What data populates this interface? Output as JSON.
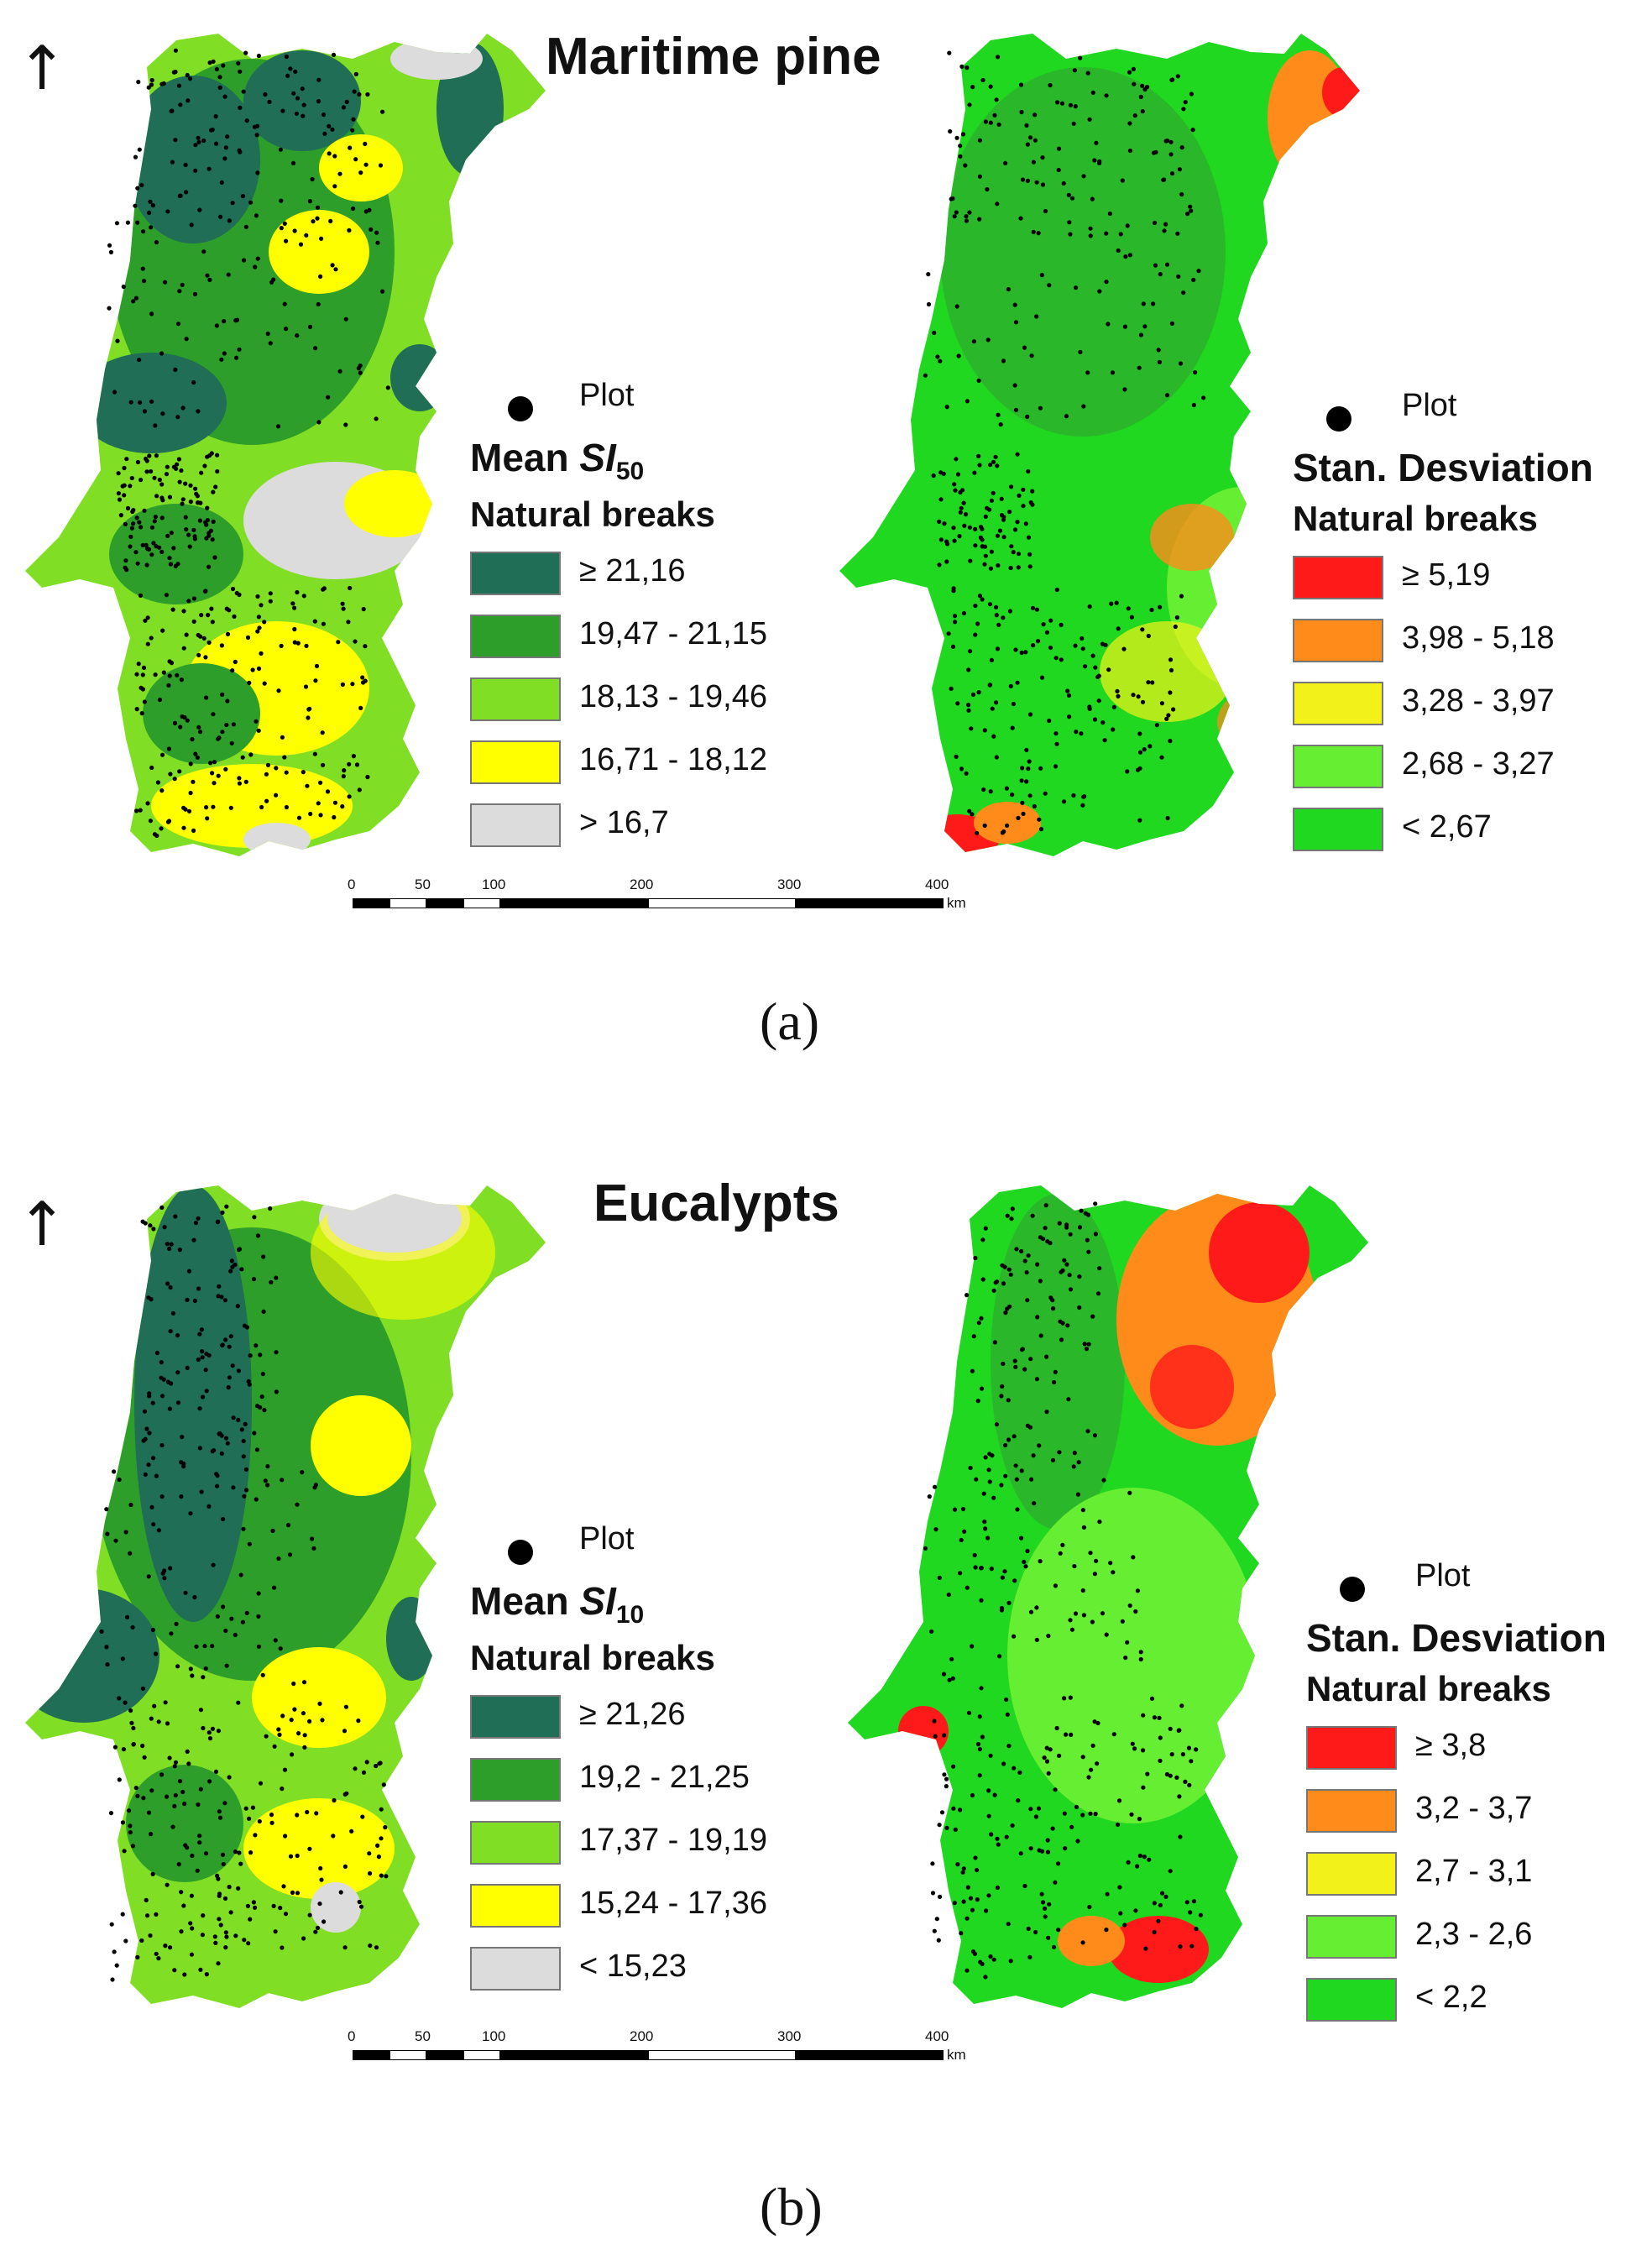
{
  "colors": {
    "si_dark": "#1f6e55",
    "si_green": "#2e9e2a",
    "si_light": "#80de24",
    "si_yellow": "#ffff00",
    "si_gray": "#dcdcdc",
    "sd_red": "#ff1a1a",
    "sd_orange": "#ff8c1a",
    "sd_yellow": "#f2f21a",
    "sd_lightgreen": "#66ee33",
    "sd_green": "#1fd81f"
  },
  "panel_a": {
    "north_arrow": "↑",
    "title": "Maritime pine",
    "caption": "(a)",
    "mean_legend": {
      "plot_label": "Plot",
      "heading_prefix": "Mean ",
      "heading_symbol": "SI",
      "heading_subscript": "50",
      "subheading": "Natural breaks",
      "classes": [
        {
          "label": "≥ 21,16",
          "color": "#1f6e55"
        },
        {
          "label": "19,47 - 21,15",
          "color": "#2e9e2a"
        },
        {
          "label": "18,13 - 19,46",
          "color": "#80de24"
        },
        {
          "label": "16,71 - 18,12",
          "color": "#ffff00"
        },
        {
          "label": "> 16,7",
          "color": "#dcdcdc"
        }
      ]
    },
    "sd_legend": {
      "plot_label": "Plot",
      "heading": "Stan. Desviation",
      "subheading": "Natural breaks",
      "classes": [
        {
          "label": "≥ 5,19",
          "color": "#ff1a1a"
        },
        {
          "label": "3,98 - 5,18",
          "color": "#ff8c1a"
        },
        {
          "label": "3,28 - 3,97",
          "color": "#f2f21a"
        },
        {
          "label": "2,68 - 3,27",
          "color": "#66ee33"
        },
        {
          "label": "< 2,67",
          "color": "#1fd81f"
        }
      ]
    },
    "scale": {
      "ticks": [
        "0",
        "50",
        "100",
        "200",
        "300",
        "400"
      ],
      "unit": "km"
    }
  },
  "panel_b": {
    "north_arrow": "↑",
    "title": "Eucalypts",
    "caption": "(b)",
    "mean_legend": {
      "plot_label": "Plot",
      "heading_prefix": "Mean ",
      "heading_symbol": "SI",
      "heading_subscript": "10",
      "subheading": "Natural breaks",
      "classes": [
        {
          "label": "≥ 21,26",
          "color": "#1f6e55"
        },
        {
          "label": "19,2 - 21,25",
          "color": "#2e9e2a"
        },
        {
          "label": "17,37 - 19,19",
          "color": "#80de24"
        },
        {
          "label": "15,24 - 17,36",
          "color": "#ffff00"
        },
        {
          "label": "< 15,23",
          "color": "#dcdcdc"
        }
      ]
    },
    "sd_legend": {
      "plot_label": "Plot",
      "heading": "Stan. Desviation",
      "subheading": "Natural breaks",
      "classes": [
        {
          "label": "≥ 3,8",
          "color": "#ff1a1a"
        },
        {
          "label": "3,2 - 3,7",
          "color": "#ff8c1a"
        },
        {
          "label": "2,7 - 3,1",
          "color": "#f2f21a"
        },
        {
          "label": "2,3 - 2,6",
          "color": "#66ee33"
        },
        {
          "label": "< 2,2",
          "color": "#1fd81f"
        }
      ]
    },
    "scale": {
      "ticks": [
        "0",
        "50",
        "100",
        "200",
        "300",
        "400"
      ],
      "unit": "km"
    }
  }
}
